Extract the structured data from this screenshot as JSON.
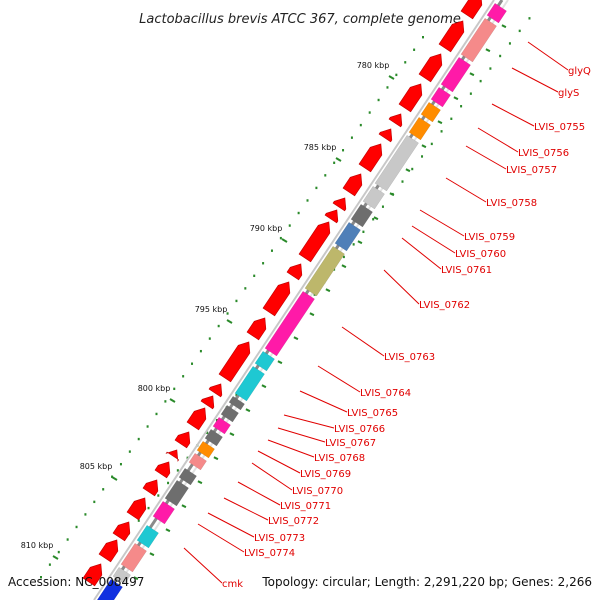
{
  "title": "Lactobacillus brevis ATCC 367, complete genome",
  "footer": {
    "accession": "Accession: NC_008497",
    "topology": "Topology: circular; Length: 2,291,220 bp; Genes: 2,266"
  },
  "ruler": {
    "labels": [
      "780 kbp",
      "785 kbp",
      "790 kbp",
      "795 kbp",
      "800 kbp",
      "805 kbp",
      "810 kbp"
    ],
    "tick_color": "#2a8a2a"
  },
  "genes": [
    "glyQ",
    "glyS",
    "LVIS_0755",
    "LVIS_0756",
    "LVIS_0757",
    "LVIS_0758",
    "LVIS_0759",
    "LVIS_0760",
    "LVIS_0761",
    "LVIS_0762",
    "LVIS_0763",
    "LVIS_0764",
    "LVIS_0765",
    "LVIS_0766",
    "LVIS_0767",
    "LVIS_0768",
    "LVIS_0769",
    "LVIS_0770",
    "LVIS_0771",
    "LVIS_0772",
    "LVIS_0773",
    "LVIS_0774",
    "cmk"
  ],
  "colors": {
    "strand_arrows": "#ff0000",
    "label": "#e00000",
    "backbone": "#7a7a7a",
    "magenta": "#ff1aa8",
    "pink": "#f58a8a",
    "orange": "#ff8c00",
    "light_gray": "#c8c8c8",
    "dark_gray": "#6e6e6e",
    "steel_blue": "#4f7fb8",
    "khaki": "#bdb76b",
    "cyan": "#1ec8d2",
    "blue": "#1030e0"
  }
}
